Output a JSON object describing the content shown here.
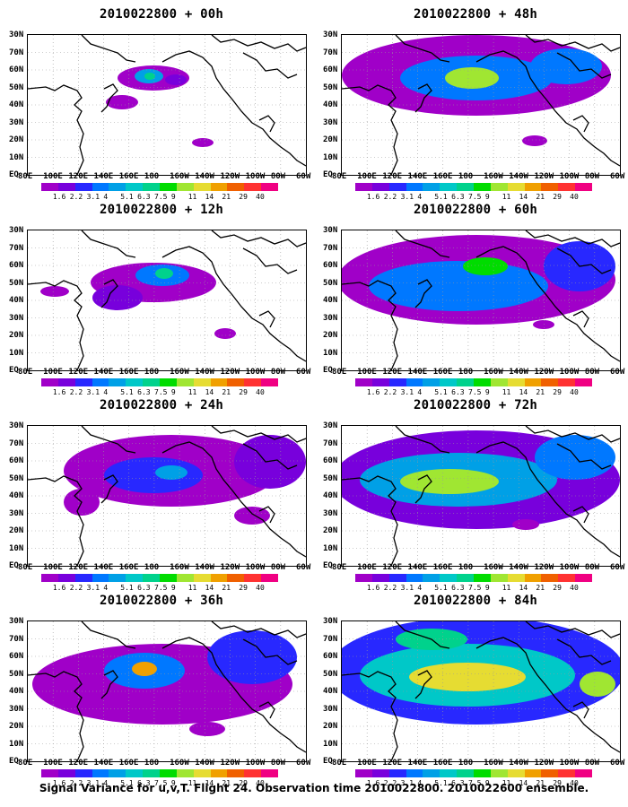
{
  "caption": "Signal Variance for u,v,T. Flight 24. Observation time 2010022800. 2010022600 ensemble.",
  "lon_labels": [
    "80E",
    "100E",
    "120E",
    "140E",
    "160E",
    "180",
    "160W",
    "140W",
    "120W",
    "100W",
    "80W",
    "60W"
  ],
  "lat_labels": [
    "80N",
    "70N",
    "60N",
    "50N",
    "40N",
    "30N",
    "20N",
    "10N",
    "EQ"
  ],
  "lat_labels_visible": [
    "30N",
    "70N",
    "60N",
    "50N",
    "40N",
    "30N",
    "20N",
    "10N",
    "EQ"
  ],
  "color_levels": [
    "1.6",
    "2.2",
    "3.1",
    "4",
    "5.1",
    "6.3",
    "7.5",
    "9",
    "11",
    "14",
    "21",
    "29",
    "40"
  ],
  "colors": [
    "#a000c8",
    "#7800dc",
    "#2828ff",
    "#0078ff",
    "#00a0e6",
    "#00c8c8",
    "#00d28c",
    "#00dc00",
    "#a0e632",
    "#e6dc32",
    "#f0a000",
    "#f06000",
    "#ff3232",
    "#f00082"
  ],
  "panels": [
    {
      "title": "2010022800 + 00h",
      "intensity": 0
    },
    {
      "title": "2010022800 + 12h",
      "intensity": 1
    },
    {
      "title": "2010022800 + 24h",
      "intensity": 2
    },
    {
      "title": "2010022800 + 36h",
      "intensity": 3
    },
    {
      "title": "2010022800 + 48h",
      "intensity": 2
    },
    {
      "title": "2010022800 + 60h",
      "intensity": 3
    },
    {
      "title": "2010022800 + 72h",
      "intensity": 4
    },
    {
      "title": "2010022800 + 84h",
      "intensity": 5
    }
  ]
}
